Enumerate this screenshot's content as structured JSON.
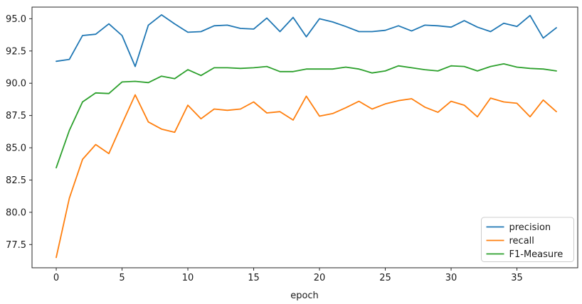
{
  "chart_data": {
    "type": "line",
    "title": "",
    "xlabel": "epoch",
    "ylabel": "",
    "grid": false,
    "legend_position": "lower right",
    "xlim": [
      -1.84,
      39.62
    ],
    "ylim": [
      75.7,
      95.9
    ],
    "xticks": [
      0,
      5,
      10,
      15,
      20,
      25,
      30,
      35
    ],
    "yticks": [
      77.5,
      80.0,
      82.5,
      85.0,
      87.5,
      90.0,
      92.5,
      95.0
    ],
    "x": [
      0,
      1,
      2,
      3,
      4,
      5,
      6,
      7,
      8,
      9,
      10,
      11,
      12,
      13,
      14,
      15,
      16,
      17,
      18,
      19,
      20,
      21,
      22,
      23,
      24,
      25,
      26,
      27,
      28,
      29,
      30,
      31,
      32,
      33,
      34,
      35,
      36,
      37,
      38
    ],
    "series": [
      {
        "name": "precision",
        "color": "#1f77b4",
        "values": [
          91.7,
          91.85,
          93.7,
          93.8,
          94.6,
          93.7,
          91.3,
          94.5,
          95.3,
          94.6,
          93.95,
          94.0,
          94.45,
          94.5,
          94.25,
          94.2,
          95.05,
          94.0,
          95.1,
          93.6,
          95.0,
          94.75,
          94.4,
          94.0,
          94.0,
          94.1,
          94.45,
          94.05,
          94.5,
          94.45,
          94.35,
          94.85,
          94.35,
          94.0,
          94.65,
          94.4,
          95.25,
          93.5,
          94.3
        ]
      },
      {
        "name": "recall",
        "color": "#ff7f0e",
        "values": [
          76.5,
          81.1,
          84.1,
          85.25,
          84.55,
          86.85,
          89.1,
          87.0,
          86.45,
          86.2,
          88.3,
          87.25,
          88.0,
          87.9,
          88.0,
          88.55,
          87.7,
          87.8,
          87.15,
          89.0,
          87.45,
          87.65,
          88.1,
          88.6,
          88.0,
          88.4,
          88.65,
          88.8,
          88.15,
          87.75,
          88.6,
          88.3,
          87.4,
          88.85,
          88.55,
          88.45,
          87.4,
          88.7,
          87.8
        ]
      },
      {
        "name": "F1-Measure",
        "color": "#2ca02c",
        "values": [
          83.45,
          86.35,
          88.55,
          89.25,
          89.2,
          90.1,
          90.15,
          90.05,
          90.55,
          90.35,
          91.05,
          90.6,
          91.2,
          91.2,
          91.15,
          91.2,
          91.3,
          90.9,
          90.9,
          91.1,
          91.1,
          91.1,
          91.25,
          91.1,
          90.8,
          90.95,
          91.35,
          91.2,
          91.05,
          90.95,
          91.35,
          91.3,
          90.95,
          91.3,
          91.5,
          91.25,
          91.15,
          91.1,
          90.95
        ]
      }
    ],
    "axis_color": "#262626",
    "legend_border_color": "#cccccc",
    "legend_bg_color": "#ffffff"
  }
}
